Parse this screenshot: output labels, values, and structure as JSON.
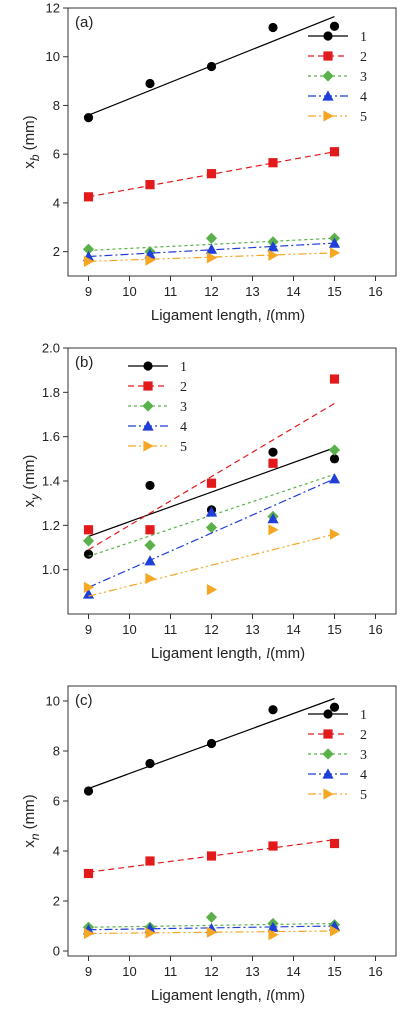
{
  "chart_data": [
    {
      "type": "scatter",
      "panel_label": "(a)",
      "xlabel": "Ligament length, ",
      "xlabel_sym": "l",
      "xlabel_unit": "(mm)",
      "ylabel_main": "x",
      "ylabel_sub": "b",
      "ylabel_unit": " (mm)",
      "xlim": [
        8.5,
        16.5
      ],
      "ylim": [
        1.0,
        12.0
      ],
      "xticks": [
        9,
        10,
        11,
        12,
        13,
        14,
        15,
        16
      ],
      "yticks": [
        2,
        4,
        6,
        8,
        10,
        12
      ],
      "legend": "right",
      "series": [
        {
          "name": "1",
          "color": "#000000",
          "marker": "circle",
          "dash": "",
          "x": [
            9,
            10.5,
            12,
            13.5,
            15
          ],
          "y": [
            7.5,
            8.9,
            9.6,
            11.2,
            11.25
          ],
          "fit": [
            [
              9,
              7.6
            ],
            [
              15,
              11.65
            ]
          ]
        },
        {
          "name": "2",
          "color": "#e31a1c",
          "marker": "square",
          "dash": "6,4",
          "x": [
            9,
            10.5,
            12,
            13.5,
            15
          ],
          "y": [
            4.25,
            4.75,
            5.2,
            5.65,
            6.1
          ],
          "fit": [
            [
              9,
              4.25
            ],
            [
              15,
              6.1
            ]
          ]
        },
        {
          "name": "3",
          "color": "#5ab14a",
          "marker": "diamond",
          "dash": "3,3",
          "x": [
            9,
            10.5,
            12,
            13.5,
            15
          ],
          "y": [
            2.1,
            2.0,
            2.55,
            2.4,
            2.55
          ],
          "fit": [
            [
              9,
              2.05
            ],
            [
              15,
              2.55
            ]
          ]
        },
        {
          "name": "4",
          "color": "#1f3fd6",
          "marker": "triangle-up",
          "dash": "8,3,2,3",
          "x": [
            9,
            10.5,
            12,
            13.5,
            15
          ],
          "y": [
            1.8,
            1.9,
            2.1,
            2.2,
            2.35
          ],
          "fit": [
            [
              9,
              1.8
            ],
            [
              15,
              2.35
            ]
          ]
        },
        {
          "name": "5",
          "color": "#f5a623",
          "marker": "triangle-right",
          "dash": "8,3,2,3,2,3",
          "x": [
            9,
            10.5,
            12,
            13.5,
            15
          ],
          "y": [
            1.6,
            1.65,
            1.75,
            1.85,
            1.95
          ],
          "fit": [
            [
              9,
              1.6
            ],
            [
              15,
              1.95
            ]
          ]
        }
      ]
    },
    {
      "type": "scatter",
      "panel_label": "(b)",
      "xlabel": "Ligament length, ",
      "xlabel_sym": "l",
      "xlabel_unit": "(mm)",
      "ylabel_main": "x",
      "ylabel_sub": "y",
      "ylabel_unit": " (mm)",
      "xlim": [
        8.5,
        16.5
      ],
      "ylim": [
        0.8,
        2.0
      ],
      "xticks": [
        9,
        10,
        11,
        12,
        13,
        14,
        15,
        16
      ],
      "yticks": [
        1.0,
        1.2,
        1.4,
        1.6,
        1.8,
        2.0
      ],
      "legend": "top-left",
      "series": [
        {
          "name": "1",
          "color": "#000000",
          "marker": "circle",
          "dash": "",
          "x": [
            9,
            10.5,
            12,
            13.5,
            15
          ],
          "y": [
            1.07,
            1.38,
            1.27,
            1.53,
            1.5
          ],
          "fit": [
            [
              9,
              1.15
            ],
            [
              15,
              1.55
            ]
          ]
        },
        {
          "name": "2",
          "color": "#e31a1c",
          "marker": "square",
          "dash": "6,4",
          "x": [
            9,
            10.5,
            12,
            13.5,
            15
          ],
          "y": [
            1.18,
            1.18,
            1.39,
            1.48,
            1.86
          ],
          "fit": [
            [
              9,
              1.09
            ],
            [
              15,
              1.75
            ]
          ]
        },
        {
          "name": "3",
          "color": "#5ab14a",
          "marker": "diamond",
          "dash": "3,3",
          "x": [
            9,
            10.5,
            12,
            13.5,
            15
          ],
          "y": [
            1.13,
            1.11,
            1.19,
            1.24,
            1.54
          ],
          "fit": [
            [
              9,
              1.06
            ],
            [
              15,
              1.43
            ]
          ]
        },
        {
          "name": "4",
          "color": "#1f3fd6",
          "marker": "triangle-up",
          "dash": "8,3,2,3",
          "x": [
            9,
            10.5,
            12,
            13.5,
            15
          ],
          "y": [
            0.89,
            1.04,
            1.26,
            1.23,
            1.41
          ],
          "fit": [
            [
              9,
              0.92
            ],
            [
              15,
              1.41
            ]
          ]
        },
        {
          "name": "5",
          "color": "#f5a623",
          "marker": "triangle-right",
          "dash": "8,3,2,3,2,3",
          "x": [
            9,
            10.5,
            12,
            13.5,
            15
          ],
          "y": [
            0.92,
            0.96,
            0.91,
            1.18,
            1.16
          ],
          "fit": [
            [
              9,
              0.88
            ],
            [
              15,
              1.16
            ]
          ]
        }
      ]
    },
    {
      "type": "scatter",
      "panel_label": "(c)",
      "xlabel": "Ligament length, ",
      "xlabel_sym": "l",
      "xlabel_unit": "(mm)",
      "ylabel_main": "x",
      "ylabel_sub": "n",
      "ylabel_unit": " (mm)",
      "xlim": [
        8.5,
        16.5
      ],
      "ylim": [
        -0.2,
        10.6
      ],
      "xticks": [
        9,
        10,
        11,
        12,
        13,
        14,
        15,
        16
      ],
      "yticks": [
        0,
        2,
        4,
        6,
        8,
        10
      ],
      "legend": "right",
      "series": [
        {
          "name": "1",
          "color": "#000000",
          "marker": "circle",
          "dash": "",
          "x": [
            9,
            10.5,
            12,
            13.5,
            15
          ],
          "y": [
            6.4,
            7.5,
            8.3,
            9.65,
            9.75
          ],
          "fit": [
            [
              9,
              6.5
            ],
            [
              15,
              10.1
            ]
          ]
        },
        {
          "name": "2",
          "color": "#e31a1c",
          "marker": "square",
          "dash": "6,4",
          "x": [
            9,
            10.5,
            12,
            13.5,
            15
          ],
          "y": [
            3.1,
            3.6,
            3.8,
            4.2,
            4.3
          ],
          "fit": [
            [
              9,
              3.15
            ],
            [
              15,
              4.45
            ]
          ]
        },
        {
          "name": "3",
          "color": "#5ab14a",
          "marker": "diamond",
          "dash": "3,3",
          "x": [
            9,
            10.5,
            12,
            13.5,
            15
          ],
          "y": [
            0.95,
            0.95,
            1.35,
            1.1,
            1.05
          ],
          "fit": [
            [
              9,
              0.95
            ],
            [
              15,
              1.1
            ]
          ]
        },
        {
          "name": "4",
          "color": "#1f3fd6",
          "marker": "triangle-up",
          "dash": "8,3,2,3",
          "x": [
            9,
            10.5,
            12,
            13.5,
            15
          ],
          "y": [
            0.85,
            0.9,
            0.9,
            0.95,
            1.0
          ],
          "fit": [
            [
              9,
              0.85
            ],
            [
              15,
              1.0
            ]
          ]
        },
        {
          "name": "5",
          "color": "#f5a623",
          "marker": "triangle-right",
          "dash": "8,3,2,3,2,3",
          "x": [
            9,
            10.5,
            12,
            13.5,
            15
          ],
          "y": [
            0.7,
            0.72,
            0.75,
            0.65,
            0.8
          ],
          "fit": [
            [
              9,
              0.7
            ],
            [
              15,
              0.8
            ]
          ]
        }
      ]
    }
  ]
}
